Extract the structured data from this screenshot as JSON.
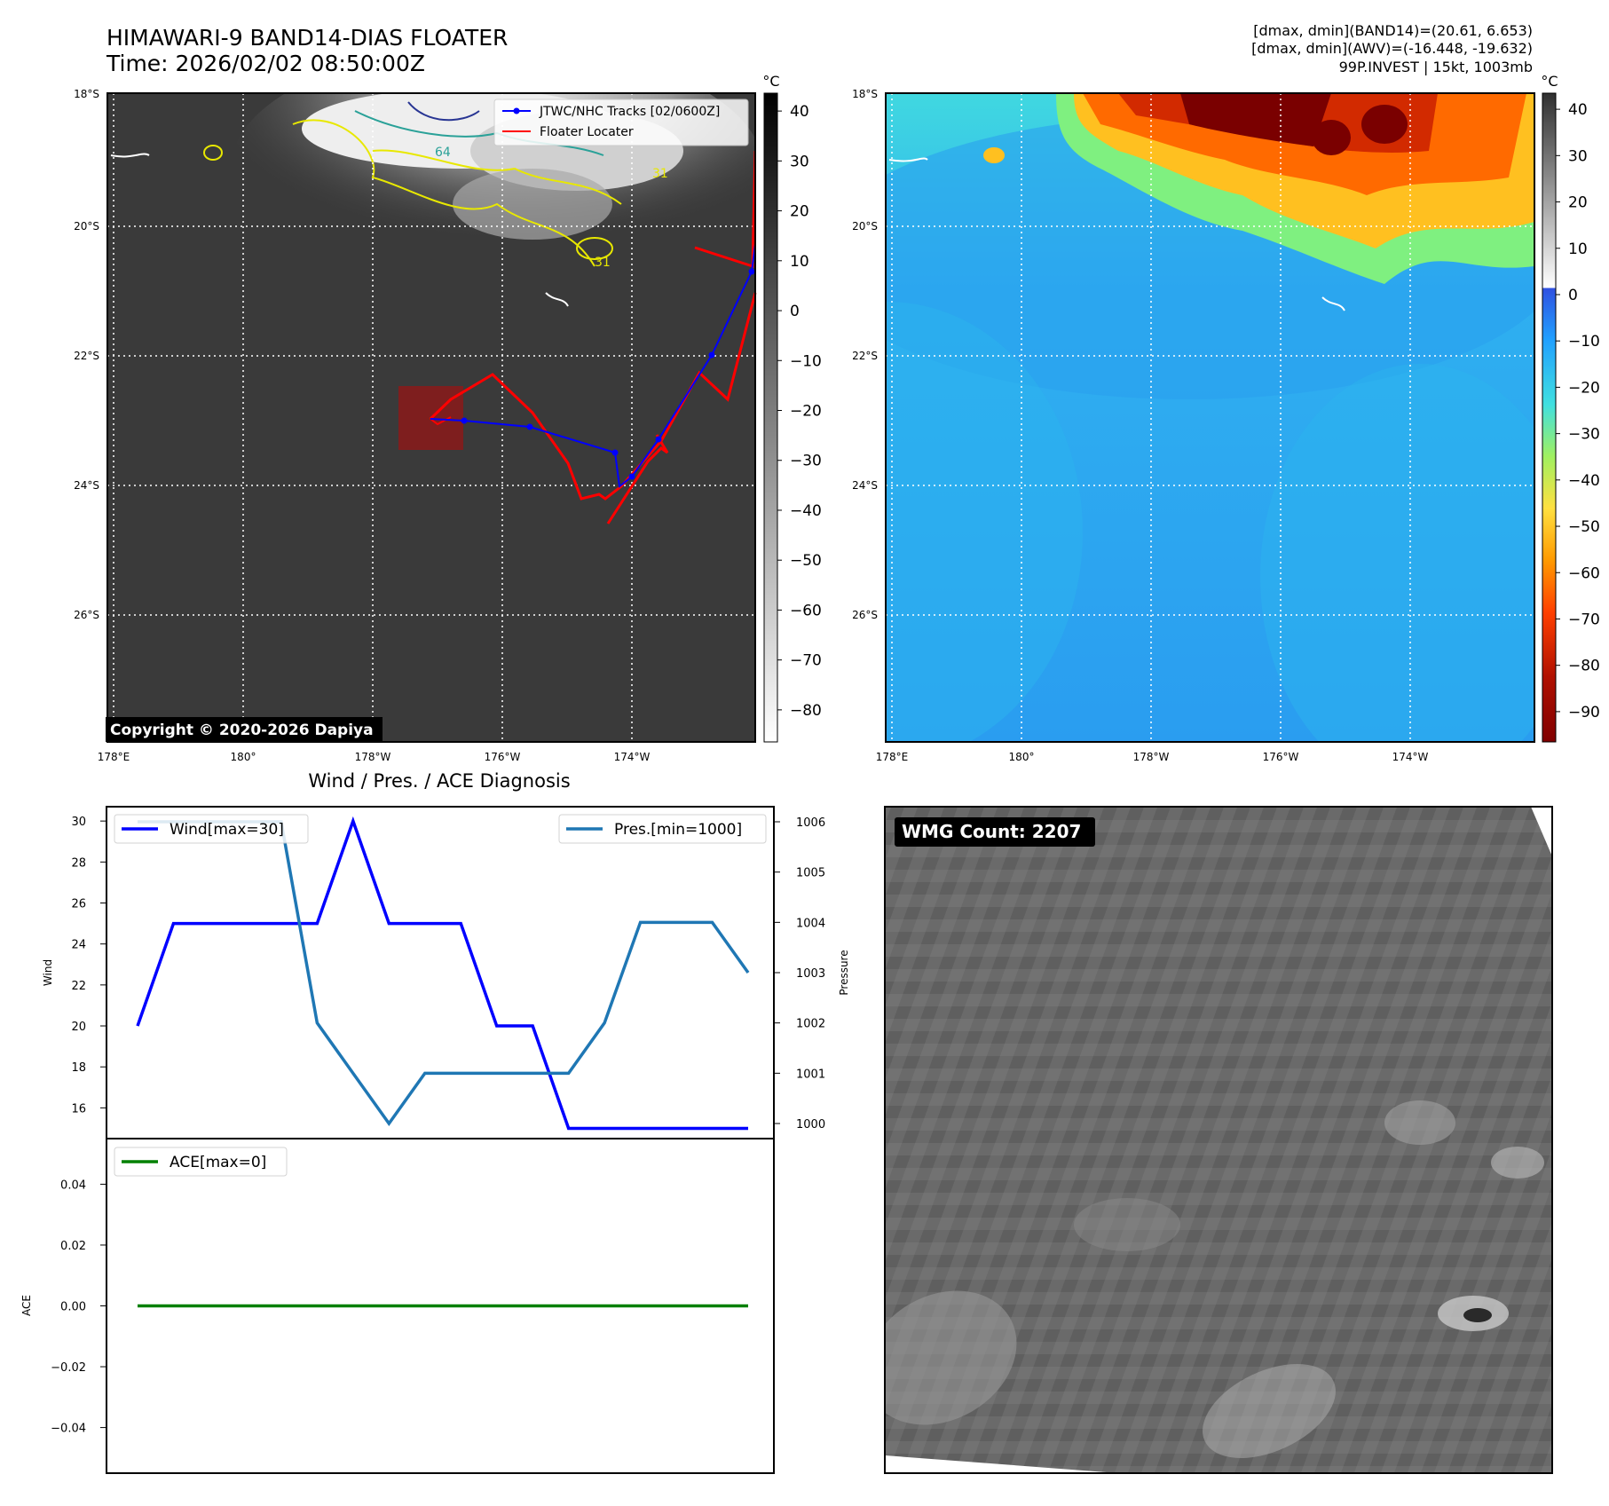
{
  "header": {
    "title": "HIMAWARI-9 BAND14-DIAS FLOATER",
    "time": "Time: 2026/02/02 08:50:00Z",
    "stats_line1": "[dmax, dmin](BAND14)=(20.61, 6.653)",
    "stats_line2": "[dmax, dmin](AWV)=(-16.448, -19.632)",
    "stats_line3": "99P.INVEST | 15kt, 1003mb"
  },
  "map": {
    "lat_labels": [
      "18°S",
      "20°S",
      "22°S",
      "24°S",
      "26°S"
    ],
    "lon_labels": [
      "178°E",
      "180°",
      "178°W",
      "176°W",
      "174°W"
    ],
    "legend": {
      "track": "JTWC/NHC Tracks [02/0600Z]",
      "locater": "Floater Locater"
    },
    "contour_labels": [
      "64",
      "31",
      "31"
    ],
    "copyright": "Copyright © 2020-2026 Dapiya",
    "colorbar_unit": "°C",
    "colorbar1_ticks": [
      "40",
      "30",
      "20",
      "10",
      "0",
      "−10",
      "−20",
      "−30",
      "−40",
      "−50",
      "−60",
      "−70",
      "−80"
    ],
    "colorbar2_ticks": [
      "40",
      "30",
      "20",
      "10",
      "0",
      "−10",
      "−20",
      "−30",
      "−40",
      "−50",
      "−60",
      "−70",
      "−80",
      "−90"
    ],
    "colors": {
      "track": "#0000ff",
      "locater": "#ff0000",
      "box": "#8b1a1a"
    }
  },
  "diagnosis": {
    "title": "Wind / Pres. / ACE Diagnosis"
  },
  "wmg": {
    "label": "WMG Count: 2207"
  },
  "chart_data": [
    {
      "type": "line",
      "title": "Wind / Pres. / ACE Diagnosis",
      "ylabel": "Wind",
      "y2label": "Pressure",
      "ylim": [
        14.5,
        30.7
      ],
      "y2lim": [
        999.7,
        1006.3
      ],
      "yticks": [
        16,
        18,
        20,
        22,
        24,
        26,
        28,
        30
      ],
      "y2ticks": [
        1000,
        1001,
        1002,
        1003,
        1004,
        1005,
        1006
      ],
      "series": [
        {
          "name": "Wind[max=30]",
          "axis": "left",
          "color": "#0000ff",
          "values": [
            20,
            25,
            25,
            25,
            25,
            25,
            30,
            25,
            25,
            25,
            20,
            20,
            15,
            15,
            15,
            15,
            15,
            15
          ]
        },
        {
          "name": "Pres.[min=1000]",
          "axis": "right",
          "color": "#1f77b4",
          "values": [
            1006,
            1006,
            1006,
            1006,
            1006,
            1002,
            1001,
            1000,
            1001,
            1001,
            1001,
            1001,
            1001,
            1002,
            1004,
            1004,
            1004,
            1003
          ]
        }
      ]
    },
    {
      "type": "line",
      "ylabel": "ACE",
      "ylim": [
        -0.055,
        0.055
      ],
      "yticks": [
        -0.04,
        -0.02,
        0.0,
        0.02,
        0.04
      ],
      "ytick_labels": [
        "−0.04",
        "−0.02",
        "0.00",
        "0.02",
        "0.04"
      ],
      "series": [
        {
          "name": "ACE[max=0]",
          "color": "#008000",
          "values": [
            0,
            0,
            0,
            0,
            0,
            0,
            0,
            0,
            0,
            0,
            0,
            0,
            0,
            0,
            0,
            0,
            0,
            0
          ]
        }
      ]
    }
  ]
}
